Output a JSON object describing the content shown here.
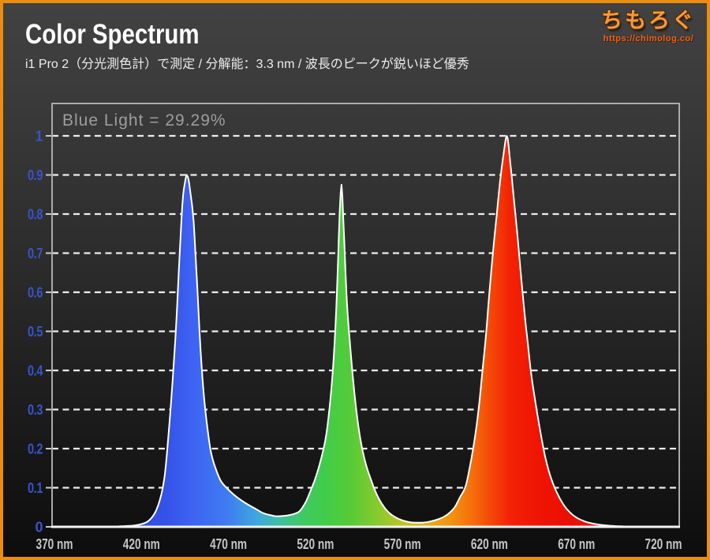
{
  "header": {
    "title": "Color Spectrum",
    "subtitle": "i1 Pro 2（分光測色計）で測定 / 分解能：3.3 nm / 波長のピークが鋭いほど優秀"
  },
  "logo": {
    "site_name": "ちもろぐ",
    "url": "https://chimolog.co/"
  },
  "theme": {
    "frame_color": "#EC8D0F",
    "plot_border_color": "#ABABAB",
    "baseline_color": "#F2F2F2",
    "grid_color": "#ECECEC",
    "curve_stroke": "#FFFFFF",
    "x_label_color": "#C6C6C6",
    "y_label_color": "#3754CA"
  },
  "chart_data": {
    "type": "area",
    "annotation": "Blue Light = 29.29%",
    "x_axis": {
      "unit": "nm",
      "tick_values": [
        370,
        420,
        470,
        520,
        570,
        620,
        670,
        720
      ],
      "tick_labels": [
        "370 nm",
        "420 nm",
        "470 nm",
        "520 nm",
        "570 nm",
        "620 nm",
        "670 nm",
        "720 nm"
      ],
      "range_nm": [
        370,
        729
      ]
    },
    "y_axis": {
      "tick_values": [
        0,
        0.1,
        0.2,
        0.3,
        0.4,
        0.5,
        0.6,
        0.7,
        0.8,
        0.9,
        1
      ],
      "tick_labels": [
        "0",
        "0.1",
        "0.2",
        "0.3",
        "0.4",
        "0.5",
        "0.6",
        "0.7",
        "0.8",
        "0.9",
        "1"
      ],
      "range": [
        0,
        1
      ]
    },
    "grid": {
      "style": "dashed",
      "orientation": "horizontal"
    },
    "peaks": [
      {
        "band": "blue",
        "wavelength_nm": 446,
        "relative_intensity": 0.9
      },
      {
        "band": "green",
        "wavelength_nm": 535,
        "relative_intensity": 0.875
      },
      {
        "band": "red",
        "wavelength_nm": 630,
        "relative_intensity": 1.0
      }
    ],
    "series": [
      {
        "name": "spectral power distribution",
        "points": [
          [
            370,
            0
          ],
          [
            380,
            0
          ],
          [
            390,
            0
          ],
          [
            400,
            0
          ],
          [
            406,
            0.001
          ],
          [
            411,
            0.002
          ],
          [
            415,
            0.003
          ],
          [
            419,
            0.006
          ],
          [
            423,
            0.012
          ],
          [
            427,
            0.03
          ],
          [
            430,
            0.06
          ],
          [
            433,
            0.12
          ],
          [
            436,
            0.26
          ],
          [
            438,
            0.38
          ],
          [
            440,
            0.52
          ],
          [
            442,
            0.7
          ],
          [
            444,
            0.85
          ],
          [
            445,
            0.88
          ],
          [
            446,
            0.9
          ],
          [
            447,
            0.89
          ],
          [
            448,
            0.86
          ],
          [
            450,
            0.78
          ],
          [
            451,
            0.7
          ],
          [
            452,
            0.62
          ],
          [
            454,
            0.45
          ],
          [
            456,
            0.33
          ],
          [
            458,
            0.25
          ],
          [
            460,
            0.19
          ],
          [
            463,
            0.145
          ],
          [
            466,
            0.115
          ],
          [
            470,
            0.095
          ],
          [
            474,
            0.079
          ],
          [
            478,
            0.066
          ],
          [
            482,
            0.055
          ],
          [
            486,
            0.045
          ],
          [
            490,
            0.035
          ],
          [
            494,
            0.03
          ],
          [
            498,
            0.027
          ],
          [
            502,
            0.028
          ],
          [
            506,
            0.031
          ],
          [
            510,
            0.037
          ],
          [
            514,
            0.06
          ],
          [
            517,
            0.09
          ],
          [
            520,
            0.125
          ],
          [
            523,
            0.17
          ],
          [
            526,
            0.23
          ],
          [
            528,
            0.3
          ],
          [
            530,
            0.4
          ],
          [
            531,
            0.47
          ],
          [
            532,
            0.56
          ],
          [
            533,
            0.68
          ],
          [
            534,
            0.81
          ],
          [
            535,
            0.875
          ],
          [
            536,
            0.79
          ],
          [
            537,
            0.68
          ],
          [
            538,
            0.58
          ],
          [
            540,
            0.46
          ],
          [
            542,
            0.36
          ],
          [
            544,
            0.28
          ],
          [
            546,
            0.22
          ],
          [
            549,
            0.16
          ],
          [
            552,
            0.12
          ],
          [
            555,
            0.085
          ],
          [
            558,
            0.06
          ],
          [
            561,
            0.042
          ],
          [
            564,
            0.03
          ],
          [
            568,
            0.02
          ],
          [
            572,
            0.014
          ],
          [
            576,
            0.011
          ],
          [
            580,
            0.0105
          ],
          [
            584,
            0.012
          ],
          [
            588,
            0.016
          ],
          [
            592,
            0.022
          ],
          [
            596,
            0.032
          ],
          [
            600,
            0.05
          ],
          [
            603,
            0.075
          ],
          [
            606,
            0.1
          ],
          [
            609,
            0.16
          ],
          [
            612,
            0.24
          ],
          [
            614,
            0.31
          ],
          [
            616,
            0.4
          ],
          [
            618,
            0.49
          ],
          [
            620,
            0.6
          ],
          [
            622,
            0.7
          ],
          [
            624,
            0.79
          ],
          [
            626,
            0.88
          ],
          [
            628,
            0.95
          ],
          [
            630,
            1
          ],
          [
            632,
            0.93
          ],
          [
            634,
            0.84
          ],
          [
            636,
            0.75
          ],
          [
            638,
            0.65
          ],
          [
            640,
            0.555
          ],
          [
            642,
            0.47
          ],
          [
            644,
            0.39
          ],
          [
            646,
            0.33
          ],
          [
            649,
            0.25
          ],
          [
            652,
            0.18
          ],
          [
            655,
            0.13
          ],
          [
            658,
            0.095
          ],
          [
            661,
            0.068
          ],
          [
            664,
            0.048
          ],
          [
            668,
            0.03
          ],
          [
            672,
            0.019
          ],
          [
            676,
            0.012
          ],
          [
            681,
            0.007
          ],
          [
            686,
            0.004
          ],
          [
            692,
            0.002
          ],
          [
            698,
            0.001
          ],
          [
            705,
            0.0005
          ],
          [
            712,
            0.0002
          ],
          [
            720,
            0
          ],
          [
            729,
            0
          ]
        ]
      }
    ],
    "spectrum_gradient": [
      [
        370,
        "#2B38CE"
      ],
      [
        435,
        "#3553E8"
      ],
      [
        450,
        "#3E63F2"
      ],
      [
        470,
        "#3F7DF0"
      ],
      [
        487,
        "#3FA9DC"
      ],
      [
        500,
        "#3EC0A0"
      ],
      [
        512,
        "#3FC966"
      ],
      [
        525,
        "#40CC4A"
      ],
      [
        540,
        "#55CB38"
      ],
      [
        558,
        "#8FCA2C"
      ],
      [
        572,
        "#C6C322"
      ],
      [
        585,
        "#E6AC19"
      ],
      [
        598,
        "#F29210"
      ],
      [
        610,
        "#F56F0B"
      ],
      [
        622,
        "#F44407"
      ],
      [
        632,
        "#F22205"
      ],
      [
        650,
        "#EF1303"
      ],
      [
        680,
        "#EA0D02"
      ],
      [
        729,
        "#E60B02"
      ]
    ]
  }
}
